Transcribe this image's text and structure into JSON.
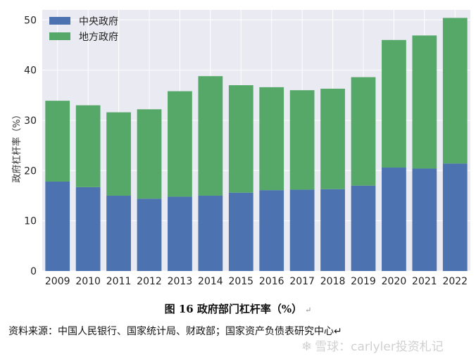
{
  "chart_data": {
    "type": "bar",
    "stacked": true,
    "title": "",
    "xlabel": "",
    "ylabel": "政府杠杆率（%）",
    "ylim": [
      0,
      52
    ],
    "yticks": [
      0,
      10,
      20,
      30,
      40,
      50
    ],
    "grid": true,
    "legend_position": "top-left",
    "categories": [
      "2009",
      "2010",
      "2011",
      "2012",
      "2013",
      "2014",
      "2015",
      "2016",
      "2017",
      "2018",
      "2019",
      "2020",
      "2021",
      "2022"
    ],
    "series": [
      {
        "name": "中央政府",
        "color": "#4c72b0",
        "values": [
          17.8,
          16.7,
          15.0,
          14.4,
          14.8,
          15.0,
          15.6,
          16.1,
          16.2,
          16.3,
          17.0,
          20.6,
          20.4,
          21.4
        ]
      },
      {
        "name": "地方政府",
        "color": "#55a868",
        "values": [
          16.1,
          16.3,
          16.6,
          17.8,
          21.0,
          23.8,
          21.4,
          20.5,
          19.8,
          20.0,
          21.6,
          25.4,
          26.5,
          29.0
        ]
      }
    ]
  },
  "caption": {
    "text": "图 16 政府部门杠杆率（%）",
    "mark": "↵"
  },
  "source": {
    "text": "资料来源：中国人民银行、国家统计局、财政部；国家资产负债表研究中心↵"
  },
  "watermark": {
    "icon": "snowball-icon",
    "text": "雪球：carlyler投资札记"
  },
  "colors": {
    "background": "#eaeaf2",
    "grid": "#ffffff"
  }
}
